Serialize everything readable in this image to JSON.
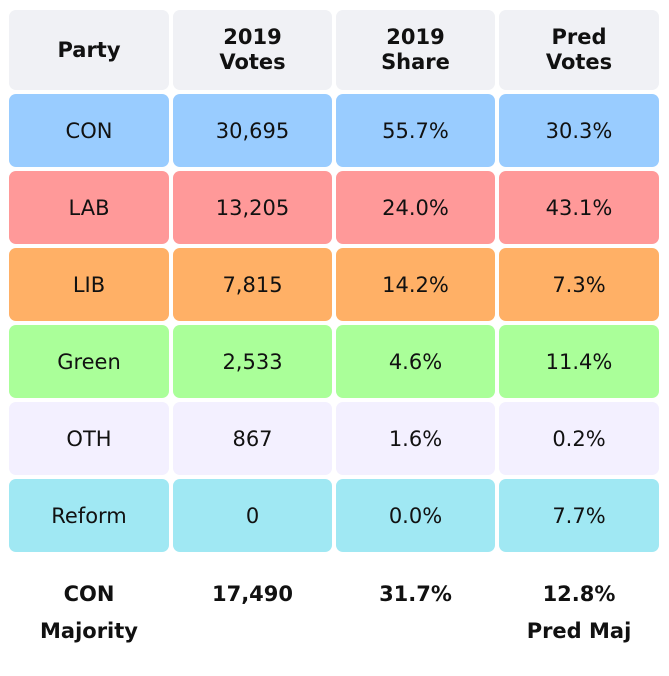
{
  "headers": [
    "Party",
    "2019\nVotes",
    "2019\nShare",
    "Pred\nVotes"
  ],
  "header_lines": [
    [
      "Party"
    ],
    [
      "2019",
      "Votes"
    ],
    [
      "2019",
      "Share"
    ],
    [
      "Pred",
      "Votes"
    ]
  ],
  "rows": [
    {
      "party": "CON",
      "votes_2019": "30,695",
      "share_2019": "55.7%",
      "pred_votes": "30.3%",
      "color": "#99ccff"
    },
    {
      "party": "LAB",
      "votes_2019": "13,205",
      "share_2019": "24.0%",
      "pred_votes": "43.1%",
      "color": "#ff9999"
    },
    {
      "party": "LIB",
      "votes_2019": "7,815",
      "share_2019": "14.2%",
      "pred_votes": "7.3%",
      "color": "#ffb066"
    },
    {
      "party": "Green",
      "votes_2019": "2,533",
      "share_2019": "4.6%",
      "pred_votes": "11.4%",
      "color": "#aaff99"
    },
    {
      "party": "OTH",
      "votes_2019": "867",
      "share_2019": "1.6%",
      "pred_votes": "0.2%",
      "color": "#f3f0ff"
    },
    {
      "party": "Reform",
      "votes_2019": "0",
      "share_2019": "0.0%",
      "pred_votes": "7.7%",
      "color": "#a0e8f3"
    }
  ],
  "footer": {
    "label_line1": "CON",
    "label_line2": "Majority",
    "votes_majority": "17,490",
    "share_majority": "31.7%",
    "pred_majority_value": "12.8%",
    "pred_majority_label": "Pred Maj"
  }
}
